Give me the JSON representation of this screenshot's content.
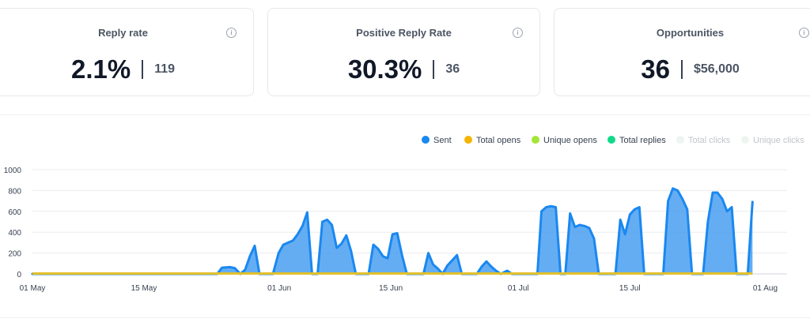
{
  "cards": [
    {
      "title": "Reply rate",
      "value": "2.1%",
      "sub": "119"
    },
    {
      "title": "Positive Reply Rate",
      "value": "30.3%",
      "sub": "36"
    },
    {
      "title": "Opportunities",
      "value": "36",
      "sub": "$56,000"
    }
  ],
  "legend": [
    {
      "label": "Sent",
      "color": "#1a88f0",
      "active": true
    },
    {
      "label": "Total opens",
      "color": "#f5b400",
      "active": true
    },
    {
      "label": "Unique opens",
      "color": "#a3e635",
      "active": true
    },
    {
      "label": "Total replies",
      "color": "#10d98a",
      "active": true
    },
    {
      "label": "Total clicks",
      "color": "#eef5f1",
      "active": false
    },
    {
      "label": "Unique clicks",
      "color": "#eef5f1",
      "active": false
    }
  ],
  "chart_data": {
    "type": "area",
    "title": "",
    "xlabel": "",
    "ylabel": "",
    "ylim": [
      0,
      1000
    ],
    "yticks": [
      "1000",
      "800",
      "600",
      "400",
      "200",
      "0"
    ],
    "xticks": [
      {
        "label": "01 May",
        "day": 0
      },
      {
        "label": "15 May",
        "day": 14
      },
      {
        "label": "01 Jun",
        "day": 31
      },
      {
        "label": "15 Jun",
        "day": 45
      },
      {
        "label": "01 Jul",
        "day": 61
      },
      {
        "label": "15 Jul",
        "day": 75
      },
      {
        "label": "01 Aug",
        "day": 92
      }
    ],
    "series": [
      {
        "name": "Sent",
        "color": "#1a88f0",
        "points": [
          [
            0,
            0
          ],
          [
            22,
            0
          ],
          [
            23.2,
            0
          ],
          [
            23.8,
            60
          ],
          [
            24.8,
            65
          ],
          [
            25.4,
            55
          ],
          [
            26.1,
            0
          ],
          [
            26.7,
            40
          ],
          [
            27.3,
            170
          ],
          [
            27.9,
            270
          ],
          [
            28.5,
            0
          ],
          [
            30.2,
            0
          ],
          [
            30.9,
            200
          ],
          [
            31.5,
            280
          ],
          [
            32.1,
            300
          ],
          [
            32.7,
            320
          ],
          [
            33.3,
            380
          ],
          [
            33.9,
            460
          ],
          [
            34.5,
            590
          ],
          [
            35.1,
            0
          ],
          [
            35.8,
            0
          ],
          [
            36.4,
            500
          ],
          [
            37,
            520
          ],
          [
            37.6,
            470
          ],
          [
            38.2,
            250
          ],
          [
            38.8,
            290
          ],
          [
            39.4,
            370
          ],
          [
            40,
            220
          ],
          [
            40.6,
            0
          ],
          [
            42.2,
            0
          ],
          [
            42.8,
            280
          ],
          [
            43.4,
            240
          ],
          [
            44,
            170
          ],
          [
            44.6,
            150
          ],
          [
            45.2,
            380
          ],
          [
            45.8,
            390
          ],
          [
            46.4,
            180
          ],
          [
            47,
            0
          ],
          [
            49.1,
            0
          ],
          [
            49.7,
            200
          ],
          [
            50.3,
            90
          ],
          [
            50.9,
            50
          ],
          [
            51.5,
            0
          ],
          [
            52.1,
            80
          ],
          [
            52.7,
            130
          ],
          [
            53.3,
            180
          ],
          [
            53.9,
            0
          ],
          [
            55.8,
            0
          ],
          [
            56.4,
            70
          ],
          [
            57,
            120
          ],
          [
            57.6,
            70
          ],
          [
            58.2,
            30
          ],
          [
            58.8,
            0
          ],
          [
            59.6,
            30
          ],
          [
            60.2,
            0
          ],
          [
            63.4,
            0
          ],
          [
            63.9,
            600
          ],
          [
            64.5,
            640
          ],
          [
            65.1,
            650
          ],
          [
            65.7,
            640
          ],
          [
            66.3,
            0
          ],
          [
            66.9,
            0
          ],
          [
            67.5,
            580
          ],
          [
            68.1,
            450
          ],
          [
            68.7,
            470
          ],
          [
            69.3,
            460
          ],
          [
            69.9,
            440
          ],
          [
            70.5,
            340
          ],
          [
            71.1,
            0
          ],
          [
            73.2,
            0
          ],
          [
            73.8,
            520
          ],
          [
            74.4,
            380
          ],
          [
            75,
            570
          ],
          [
            75.6,
            620
          ],
          [
            76.2,
            640
          ],
          [
            76.8,
            0
          ],
          [
            79.2,
            0
          ],
          [
            79.8,
            700
          ],
          [
            80.4,
            820
          ],
          [
            81,
            800
          ],
          [
            81.6,
            720
          ],
          [
            82.2,
            620
          ],
          [
            82.8,
            0
          ],
          [
            84.2,
            0
          ],
          [
            84.8,
            500
          ],
          [
            85.4,
            780
          ],
          [
            86,
            780
          ],
          [
            86.6,
            720
          ],
          [
            87.2,
            600
          ],
          [
            87.8,
            640
          ],
          [
            88.4,
            0
          ],
          [
            89.8,
            0
          ],
          [
            90.4,
            690
          ]
        ]
      },
      {
        "name": "Total opens",
        "color": "#e3c02b",
        "points": [
          [
            0,
            4
          ],
          [
            90.4,
            4
          ]
        ]
      }
    ]
  }
}
